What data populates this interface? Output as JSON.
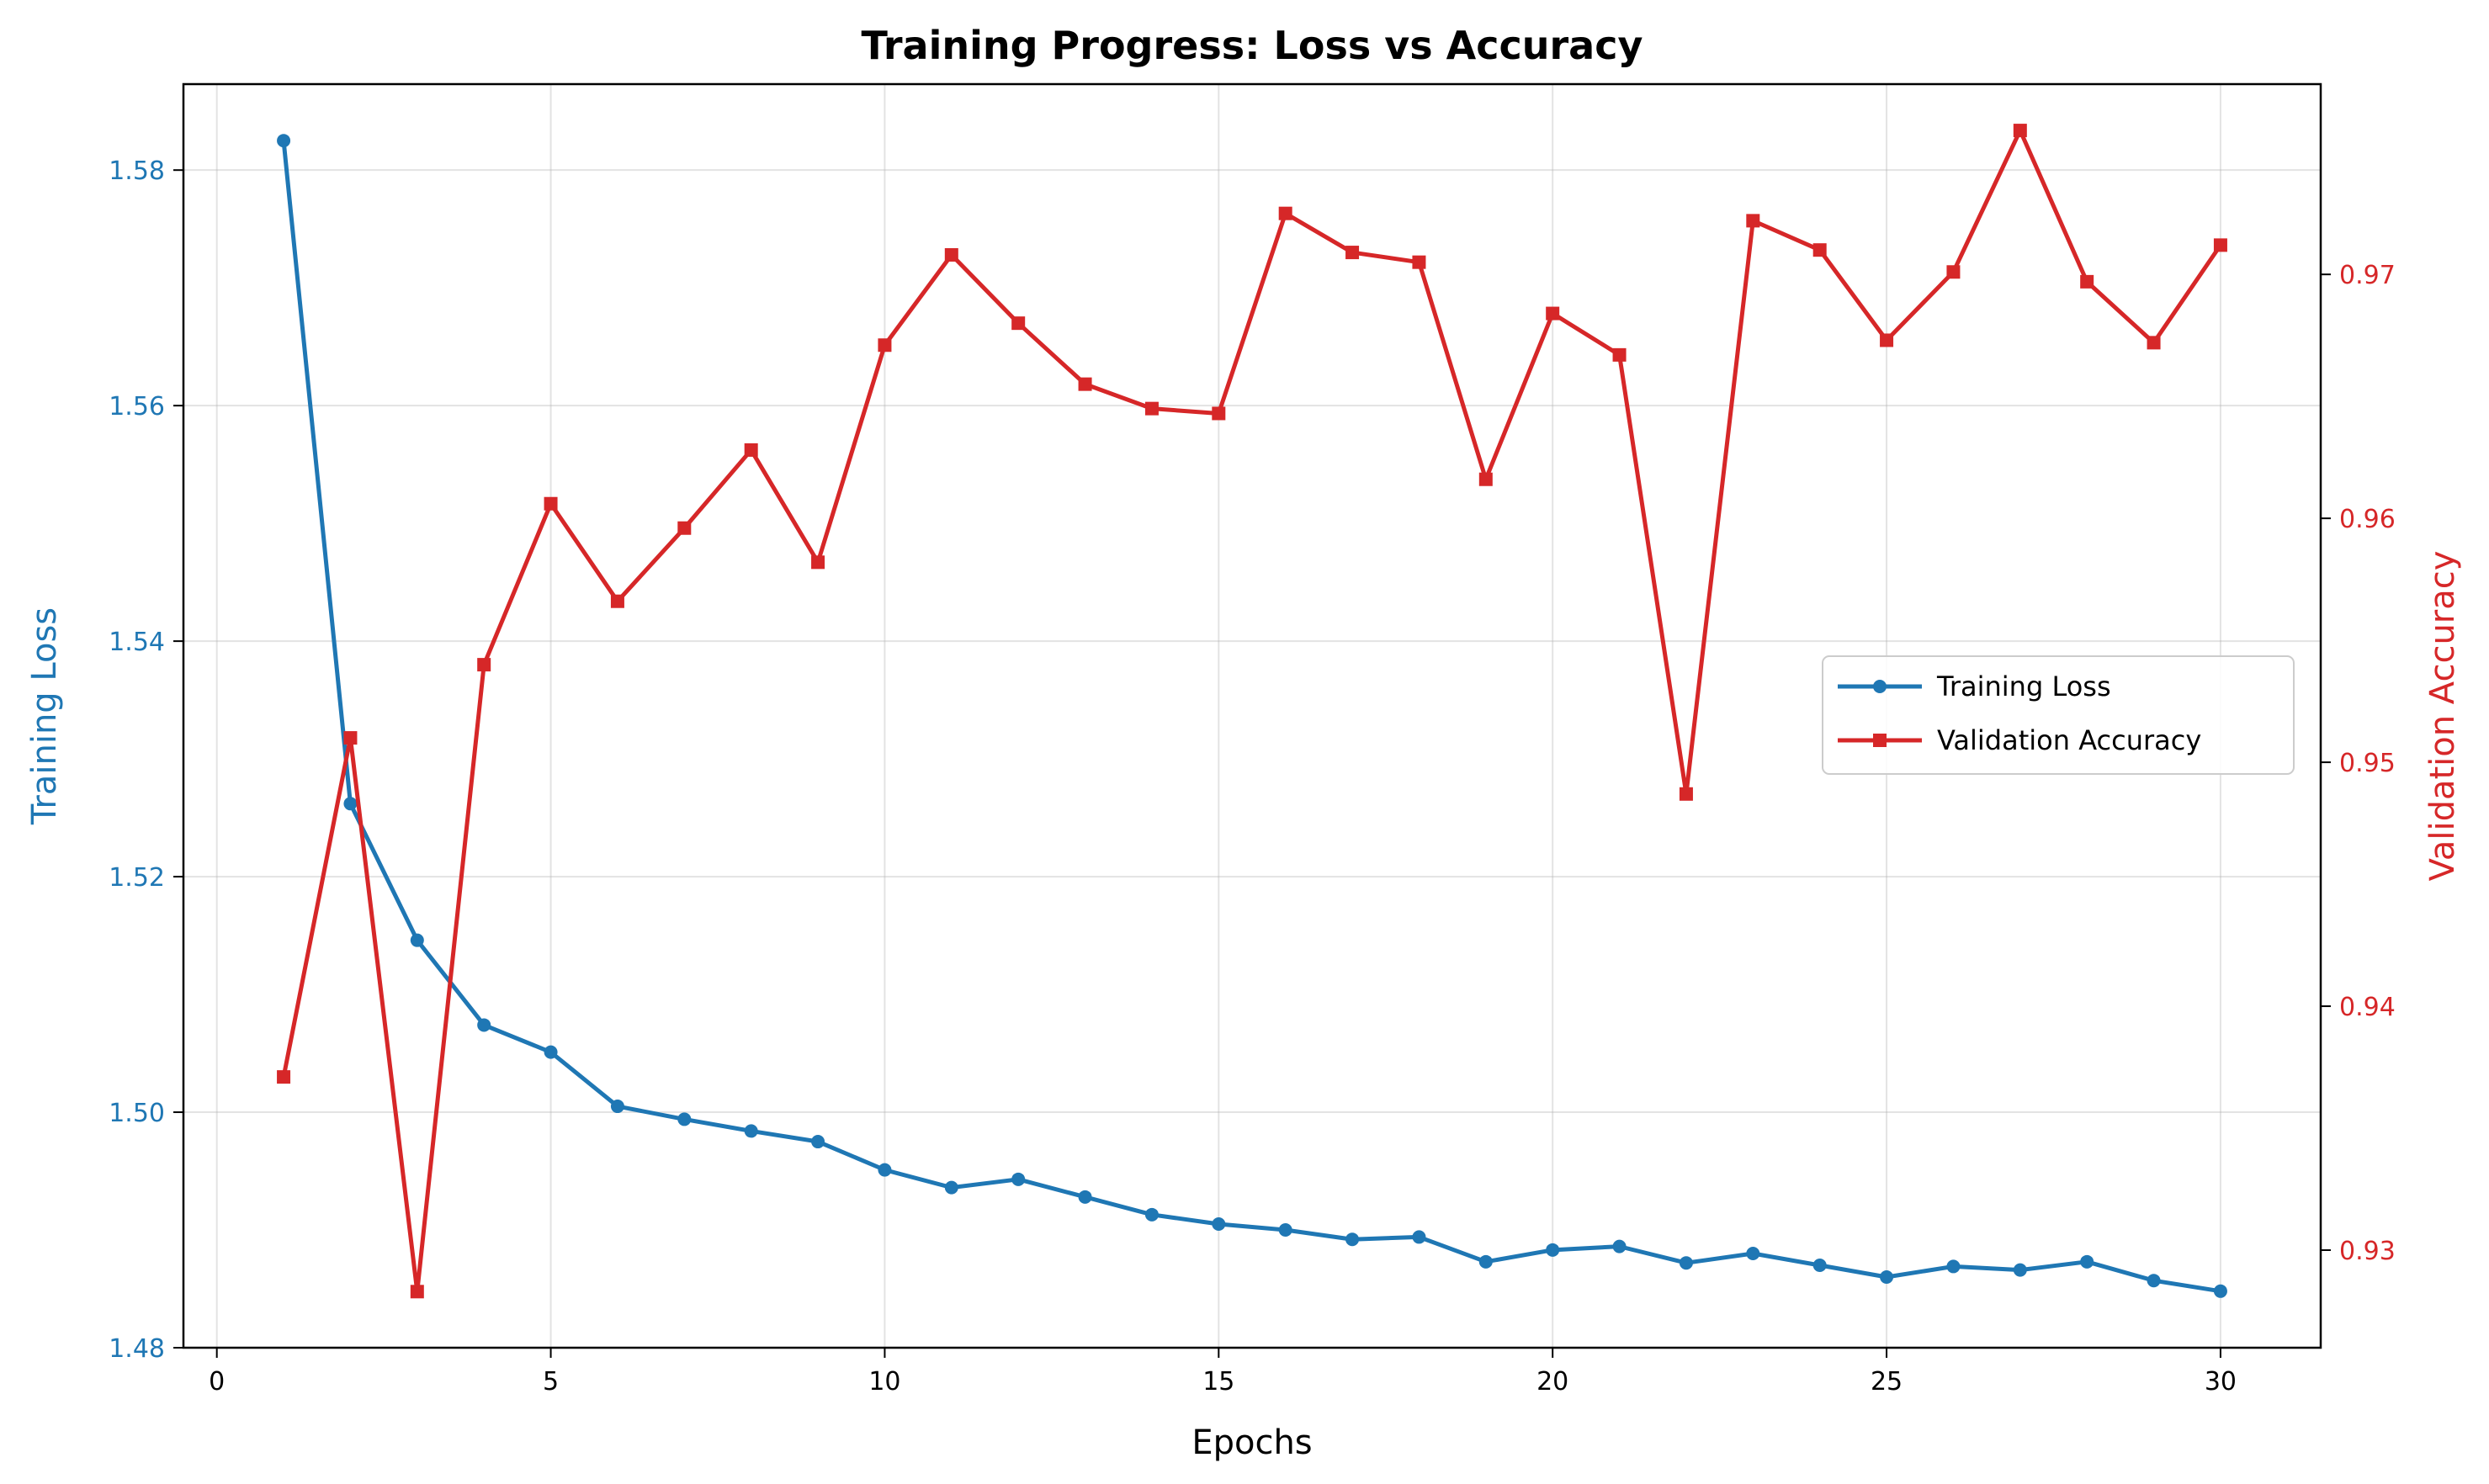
{
  "chart_data": {
    "type": "line",
    "title": "Training Progress: Loss vs Accuracy",
    "xlabel": "Epochs",
    "ylabel_left": "Training Loss",
    "ylabel_right": "Validation Accuracy",
    "xlim": [
      -0.5,
      31.5
    ],
    "ylim_left": [
      1.48,
      1.5873
    ],
    "ylim_right": [
      0.926,
      0.9778
    ],
    "xticks": [
      0,
      5,
      10,
      15,
      20,
      25,
      30
    ],
    "yticks_left": [
      1.48,
      1.5,
      1.52,
      1.54,
      1.56,
      1.58
    ],
    "yticks_left_labels": [
      "1.48",
      "1.50",
      "1.52",
      "1.54",
      "1.56",
      "1.58"
    ],
    "yticks_right": [
      0.93,
      0.94,
      0.95,
      0.96,
      0.97
    ],
    "yticks_right_labels": [
      "0.93",
      "0.94",
      "0.95",
      "0.96",
      "0.97"
    ],
    "grid": true,
    "legend_position": "center-right",
    "x": [
      1,
      2,
      3,
      4,
      5,
      6,
      7,
      8,
      9,
      10,
      11,
      12,
      13,
      14,
      15,
      16,
      17,
      18,
      19,
      20,
      21,
      22,
      23,
      24,
      25,
      26,
      27,
      28,
      29,
      30
    ],
    "series": [
      {
        "name": "Training Loss",
        "axis": "left",
        "color": "#1f77b4",
        "marker": "circle",
        "values": [
          1.5825,
          1.5262,
          1.5146,
          1.5074,
          1.5051,
          1.5005,
          1.4994,
          1.4984,
          1.4975,
          1.4951,
          1.4936,
          1.4943,
          1.4928,
          1.4913,
          1.4905,
          1.49,
          1.4892,
          1.4894,
          1.4873,
          1.4883,
          1.4886,
          1.4872,
          1.488,
          1.487,
          1.486,
          1.4869,
          1.4866,
          1.4873,
          1.4857,
          1.4848
        ]
      },
      {
        "name": "Validation Accuracy",
        "axis": "right",
        "color": "#d62728",
        "marker": "square",
        "values": [
          0.9371,
          0.951,
          0.9283,
          0.954,
          0.9606,
          0.9566,
          0.9596,
          0.9628,
          0.9582,
          0.9671,
          0.9708,
          0.968,
          0.9655,
          0.9645,
          0.9643,
          0.9725,
          0.9709,
          0.9705,
          0.9616,
          0.9684,
          0.9667,
          0.9487,
          0.9722,
          0.971,
          0.9673,
          0.9701,
          0.9759,
          0.9697,
          0.9672,
          0.9712
        ]
      }
    ]
  }
}
